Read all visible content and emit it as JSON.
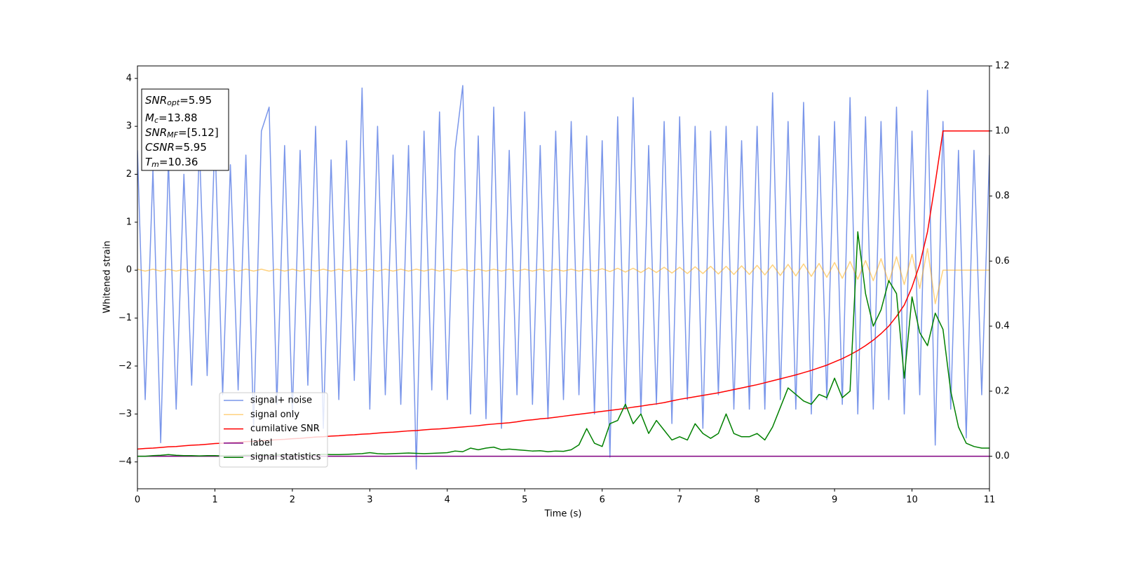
{
  "chart_data": {
    "type": "line",
    "xlabel": "Time (s)",
    "ylabel": "Whitened strain",
    "xlim": [
      0,
      11
    ],
    "ylim": [
      -4.56,
      4.26
    ],
    "y2lim": [
      -0.1,
      1.2
    ],
    "xticks": [
      0,
      1,
      2,
      3,
      4,
      5,
      6,
      7,
      8,
      9,
      10,
      11
    ],
    "yticks": [
      {
        "value": -4,
        "label": "−4"
      },
      {
        "value": -3,
        "label": "−3"
      },
      {
        "value": -2,
        "label": "−2"
      },
      {
        "value": -1,
        "label": "−1"
      },
      0,
      1,
      2,
      3,
      4
    ],
    "y2ticks": [
      {
        "value": 0,
        "label": "0.0"
      },
      0.2,
      0.4,
      0.6,
      0.8,
      {
        "value": 1,
        "label": "1.0"
      },
      1.2
    ],
    "legend": "lower left",
    "annotations": [
      {
        "base": "SNR",
        "sub": "opt",
        "rest": "=5.95"
      },
      {
        "base": "M",
        "sub": "c",
        "rest": "=13.88"
      },
      {
        "base": "SNR",
        "sub": "MF",
        "rest": "=[5.12]"
      },
      {
        "base": "CSNR",
        "rest": "=5.95"
      },
      {
        "base": "T",
        "sub": "m",
        "rest": "=10.36"
      }
    ],
    "x": [
      0,
      0.1,
      0.2,
      0.3,
      0.4,
      0.5,
      0.6,
      0.7,
      0.8,
      0.9,
      1,
      1.1,
      1.2,
      1.3,
      1.4,
      1.5,
      1.6,
      1.7,
      1.8,
      1.9,
      2,
      2.1,
      2.2,
      2.3,
      2.4,
      2.5,
      2.6,
      2.7,
      2.8,
      2.9,
      3,
      3.1,
      3.2,
      3.3,
      3.4,
      3.5,
      3.6,
      3.7,
      3.8,
      3.9,
      4,
      4.1,
      4.2,
      4.3,
      4.4,
      4.5,
      4.6,
      4.7,
      4.8,
      4.9,
      5,
      5.1,
      5.2,
      5.3,
      5.4,
      5.5,
      5.6,
      5.7,
      5.8,
      5.9,
      6,
      6.1,
      6.2,
      6.3,
      6.4,
      6.5,
      6.6,
      6.7,
      6.8,
      6.9,
      7,
      7.1,
      7.2,
      7.3,
      7.4,
      7.5,
      7.6,
      7.7,
      7.8,
      7.9,
      8,
      8.1,
      8.2,
      8.3,
      8.4,
      8.5,
      8.6,
      8.7,
      8.8,
      8.9,
      9,
      9.1,
      9.2,
      9.3,
      9.4,
      9.5,
      9.6,
      9.7,
      9.8,
      9.9,
      10,
      10.1,
      10.2,
      10.3,
      10.4,
      10.5,
      10.6,
      10.7,
      10.8,
      10.9,
      11
    ],
    "series": [
      {
        "name": "signal+ noise",
        "color": "#4169e1",
        "alpha": 0.7,
        "values": [
          2.5,
          -2.7,
          2.1,
          -3.6,
          2.3,
          -2.9,
          2.0,
          -2.4,
          2.6,
          -2.2,
          2.8,
          -2.6,
          2.2,
          -2.5,
          2.4,
          -3.3,
          2.9,
          3.4,
          -2.8,
          2.6,
          -3.0,
          2.5,
          -2.4,
          3.0,
          -3.3,
          2.3,
          -2.7,
          2.7,
          -2.3,
          3.8,
          -2.9,
          3.0,
          -2.6,
          2.4,
          -2.8,
          2.6,
          -4.15,
          2.9,
          -2.5,
          3.3,
          -2.7,
          2.5,
          3.85,
          -3.0,
          2.8,
          -3.1,
          3.4,
          -3.3,
          2.5,
          -2.6,
          3.3,
          -2.8,
          2.6,
          -3.1,
          2.9,
          -2.7,
          3.1,
          -2.6,
          2.8,
          -3.0,
          2.7,
          -3.9,
          3.2,
          -2.9,
          3.6,
          -3.0,
          2.6,
          -2.8,
          3.1,
          -3.2,
          3.2,
          -2.7,
          3.0,
          -3.3,
          2.9,
          -2.6,
          3.0,
          -2.9,
          2.7,
          -2.9,
          3.0,
          -2.9,
          3.7,
          -2.7,
          3.1,
          -2.9,
          3.5,
          -3.0,
          2.8,
          -2.7,
          3.1,
          -2.8,
          3.6,
          -3.0,
          3.2,
          -2.9,
          3.1,
          -2.7,
          3.4,
          -3.0,
          2.9,
          -2.6,
          3.75,
          -3.65,
          3.1,
          -2.9,
          2.5,
          -3.5,
          2.5,
          -2.6,
          2.4
        ]
      },
      {
        "name": "signal only",
        "color": "#ffa500",
        "alpha": 0.5,
        "values": [
          0.02,
          -0.02,
          0.02,
          -0.02,
          0.02,
          -0.02,
          0.02,
          -0.02,
          0.02,
          -0.02,
          0.02,
          -0.02,
          0.02,
          -0.02,
          0.02,
          -0.02,
          0.02,
          -0.02,
          0.02,
          -0.02,
          0.02,
          -0.02,
          0.02,
          -0.02,
          0.02,
          -0.02,
          0.02,
          -0.02,
          0.02,
          -0.02,
          0.02,
          -0.02,
          0.02,
          -0.02,
          0.02,
          -0.02,
          0.02,
          -0.02,
          0.02,
          -0.02,
          0.02,
          -0.02,
          0.02,
          -0.02,
          0.02,
          -0.02,
          0.02,
          -0.02,
          0.02,
          -0.02,
          0.02,
          -0.02,
          0.02,
          -0.02,
          0.02,
          -0.02,
          0.02,
          -0.02,
          0.02,
          -0.02,
          0.03,
          -0.03,
          0.04,
          -0.04,
          0.04,
          -0.05,
          0.05,
          -0.05,
          0.06,
          -0.06,
          0.06,
          -0.07,
          0.07,
          -0.07,
          0.08,
          -0.08,
          0.08,
          -0.09,
          0.09,
          -0.09,
          0.1,
          -0.1,
          0.11,
          -0.11,
          0.12,
          -0.12,
          0.13,
          -0.13,
          0.14,
          -0.15,
          0.16,
          -0.17,
          0.18,
          -0.19,
          0.2,
          -0.22,
          0.24,
          -0.26,
          0.28,
          -0.3,
          0.33,
          -0.38,
          0.45,
          -0.7,
          0,
          0,
          0,
          0,
          0,
          0,
          0
        ]
      },
      {
        "name": "cumilative SNR",
        "color": "#ff0000",
        "axis": "y2",
        "values": [
          0.022,
          0.024,
          0.025,
          0.027,
          0.029,
          0.03,
          0.032,
          0.034,
          0.035,
          0.037,
          0.039,
          0.04,
          0.042,
          0.043,
          0.045,
          0.046,
          0.048,
          0.049,
          0.051,
          0.052,
          0.054,
          0.055,
          0.057,
          0.059,
          0.06,
          0.062,
          0.063,
          0.065,
          0.066,
          0.068,
          0.069,
          0.071,
          0.073,
          0.074,
          0.076,
          0.078,
          0.079,
          0.081,
          0.083,
          0.084,
          0.086,
          0.088,
          0.09,
          0.092,
          0.094,
          0.097,
          0.099,
          0.101,
          0.103,
          0.106,
          0.11,
          0.112,
          0.115,
          0.117,
          0.12,
          0.123,
          0.126,
          0.129,
          0.132,
          0.135,
          0.138,
          0.141,
          0.144,
          0.147,
          0.151,
          0.154,
          0.158,
          0.161,
          0.165,
          0.17,
          0.175,
          0.179,
          0.183,
          0.187,
          0.191,
          0.195,
          0.2,
          0.205,
          0.21,
          0.215,
          0.22,
          0.226,
          0.232,
          0.238,
          0.244,
          0.25,
          0.257,
          0.264,
          0.272,
          0.28,
          0.29,
          0.3,
          0.312,
          0.325,
          0.34,
          0.357,
          0.377,
          0.4,
          0.43,
          0.465,
          0.52,
          0.59,
          0.69,
          0.84,
          1.0,
          1.0,
          1.0,
          1.0,
          1.0,
          1.0,
          1.0
        ]
      },
      {
        "name": "label",
        "color": "#800080",
        "axis": "y2",
        "x": [
          0,
          11
        ],
        "values": [
          0,
          0
        ]
      },
      {
        "name": "signal statistics",
        "color": "#008000",
        "axis": "y2",
        "values": [
          0.0,
          0.0,
          0.002,
          0.003,
          0.005,
          0.003,
          0.002,
          0.002,
          0.001,
          0.002,
          0.002,
          0.001,
          0.002,
          0.002,
          0.003,
          0.003,
          0.004,
          0.003,
          0.004,
          0.005,
          0.004,
          0.005,
          0.004,
          0.005,
          0.006,
          0.005,
          0.005,
          0.006,
          0.007,
          0.008,
          0.011,
          0.008,
          0.007,
          0.008,
          0.009,
          0.01,
          0.009,
          0.008,
          0.009,
          0.01,
          0.011,
          0.016,
          0.014,
          0.025,
          0.02,
          0.025,
          0.028,
          0.02,
          0.022,
          0.02,
          0.018,
          0.016,
          0.017,
          0.014,
          0.016,
          0.015,
          0.02,
          0.035,
          0.085,
          0.04,
          0.03,
          0.1,
          0.11,
          0.16,
          0.1,
          0.13,
          0.07,
          0.11,
          0.08,
          0.05,
          0.06,
          0.05,
          0.1,
          0.07,
          0.055,
          0.07,
          0.13,
          0.07,
          0.06,
          0.06,
          0.07,
          0.05,
          0.09,
          0.15,
          0.21,
          0.19,
          0.17,
          0.16,
          0.19,
          0.18,
          0.24,
          0.18,
          0.2,
          0.69,
          0.5,
          0.4,
          0.45,
          0.54,
          0.5,
          0.24,
          0.49,
          0.38,
          0.34,
          0.44,
          0.39,
          0.2,
          0.09,
          0.04,
          0.03,
          0.025,
          0.025
        ]
      }
    ]
  }
}
